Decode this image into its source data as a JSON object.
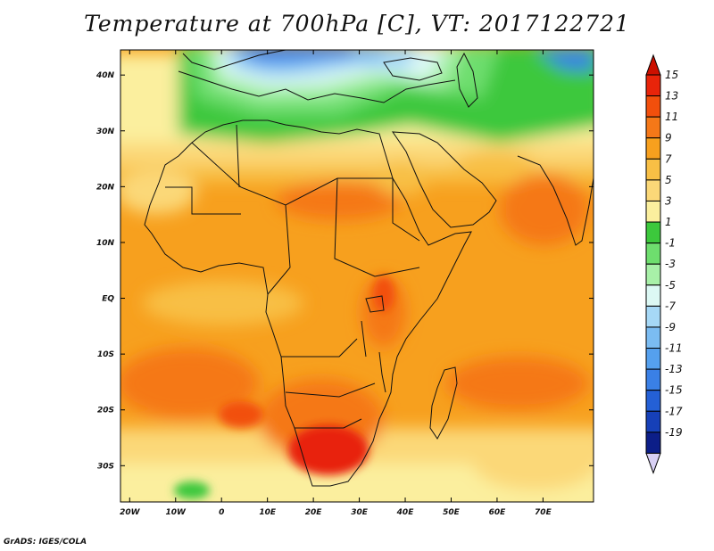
{
  "title": "Temperature at 700hPa [C], VT: 2017122721",
  "footer": "GrADS: IGES/COLA",
  "map": {
    "lat_ticks": [
      "40N",
      "30N",
      "20N",
      "10N",
      "EQ",
      "10S",
      "20S",
      "30S"
    ],
    "lon_ticks": [
      "20W",
      "10W",
      "0",
      "10E",
      "20E",
      "30E",
      "40E",
      "50E",
      "60E",
      "70E"
    ],
    "lat_range": [
      -36.5,
      44.5
    ],
    "lon_range": [
      -22,
      81
    ],
    "units": "C"
  },
  "legend": {
    "labels": [
      "15",
      "13",
      "11",
      "9",
      "7",
      "5",
      "3",
      "1",
      "-1",
      "-3",
      "-5",
      "-7",
      "-9",
      "-11",
      "-13",
      "-15",
      "-17",
      "-19"
    ],
    "colors": [
      "#e8240a",
      "#f24f0c",
      "#f57818",
      "#f7a01e",
      "#f8bf45",
      "#fbd878",
      "#fbef9e",
      "#3cc83c",
      "#6ede6e",
      "#a8f0a8",
      "#dcf8f4",
      "#a6d8f6",
      "#7bbcf2",
      "#55a0ee",
      "#3a80e6",
      "#2460d6",
      "#1640b8",
      "#0c1e88",
      "#d8d0f4"
    ],
    "overflow_high_color": "#cc1000",
    "underflow_low_color": "#d8d0f4"
  }
}
